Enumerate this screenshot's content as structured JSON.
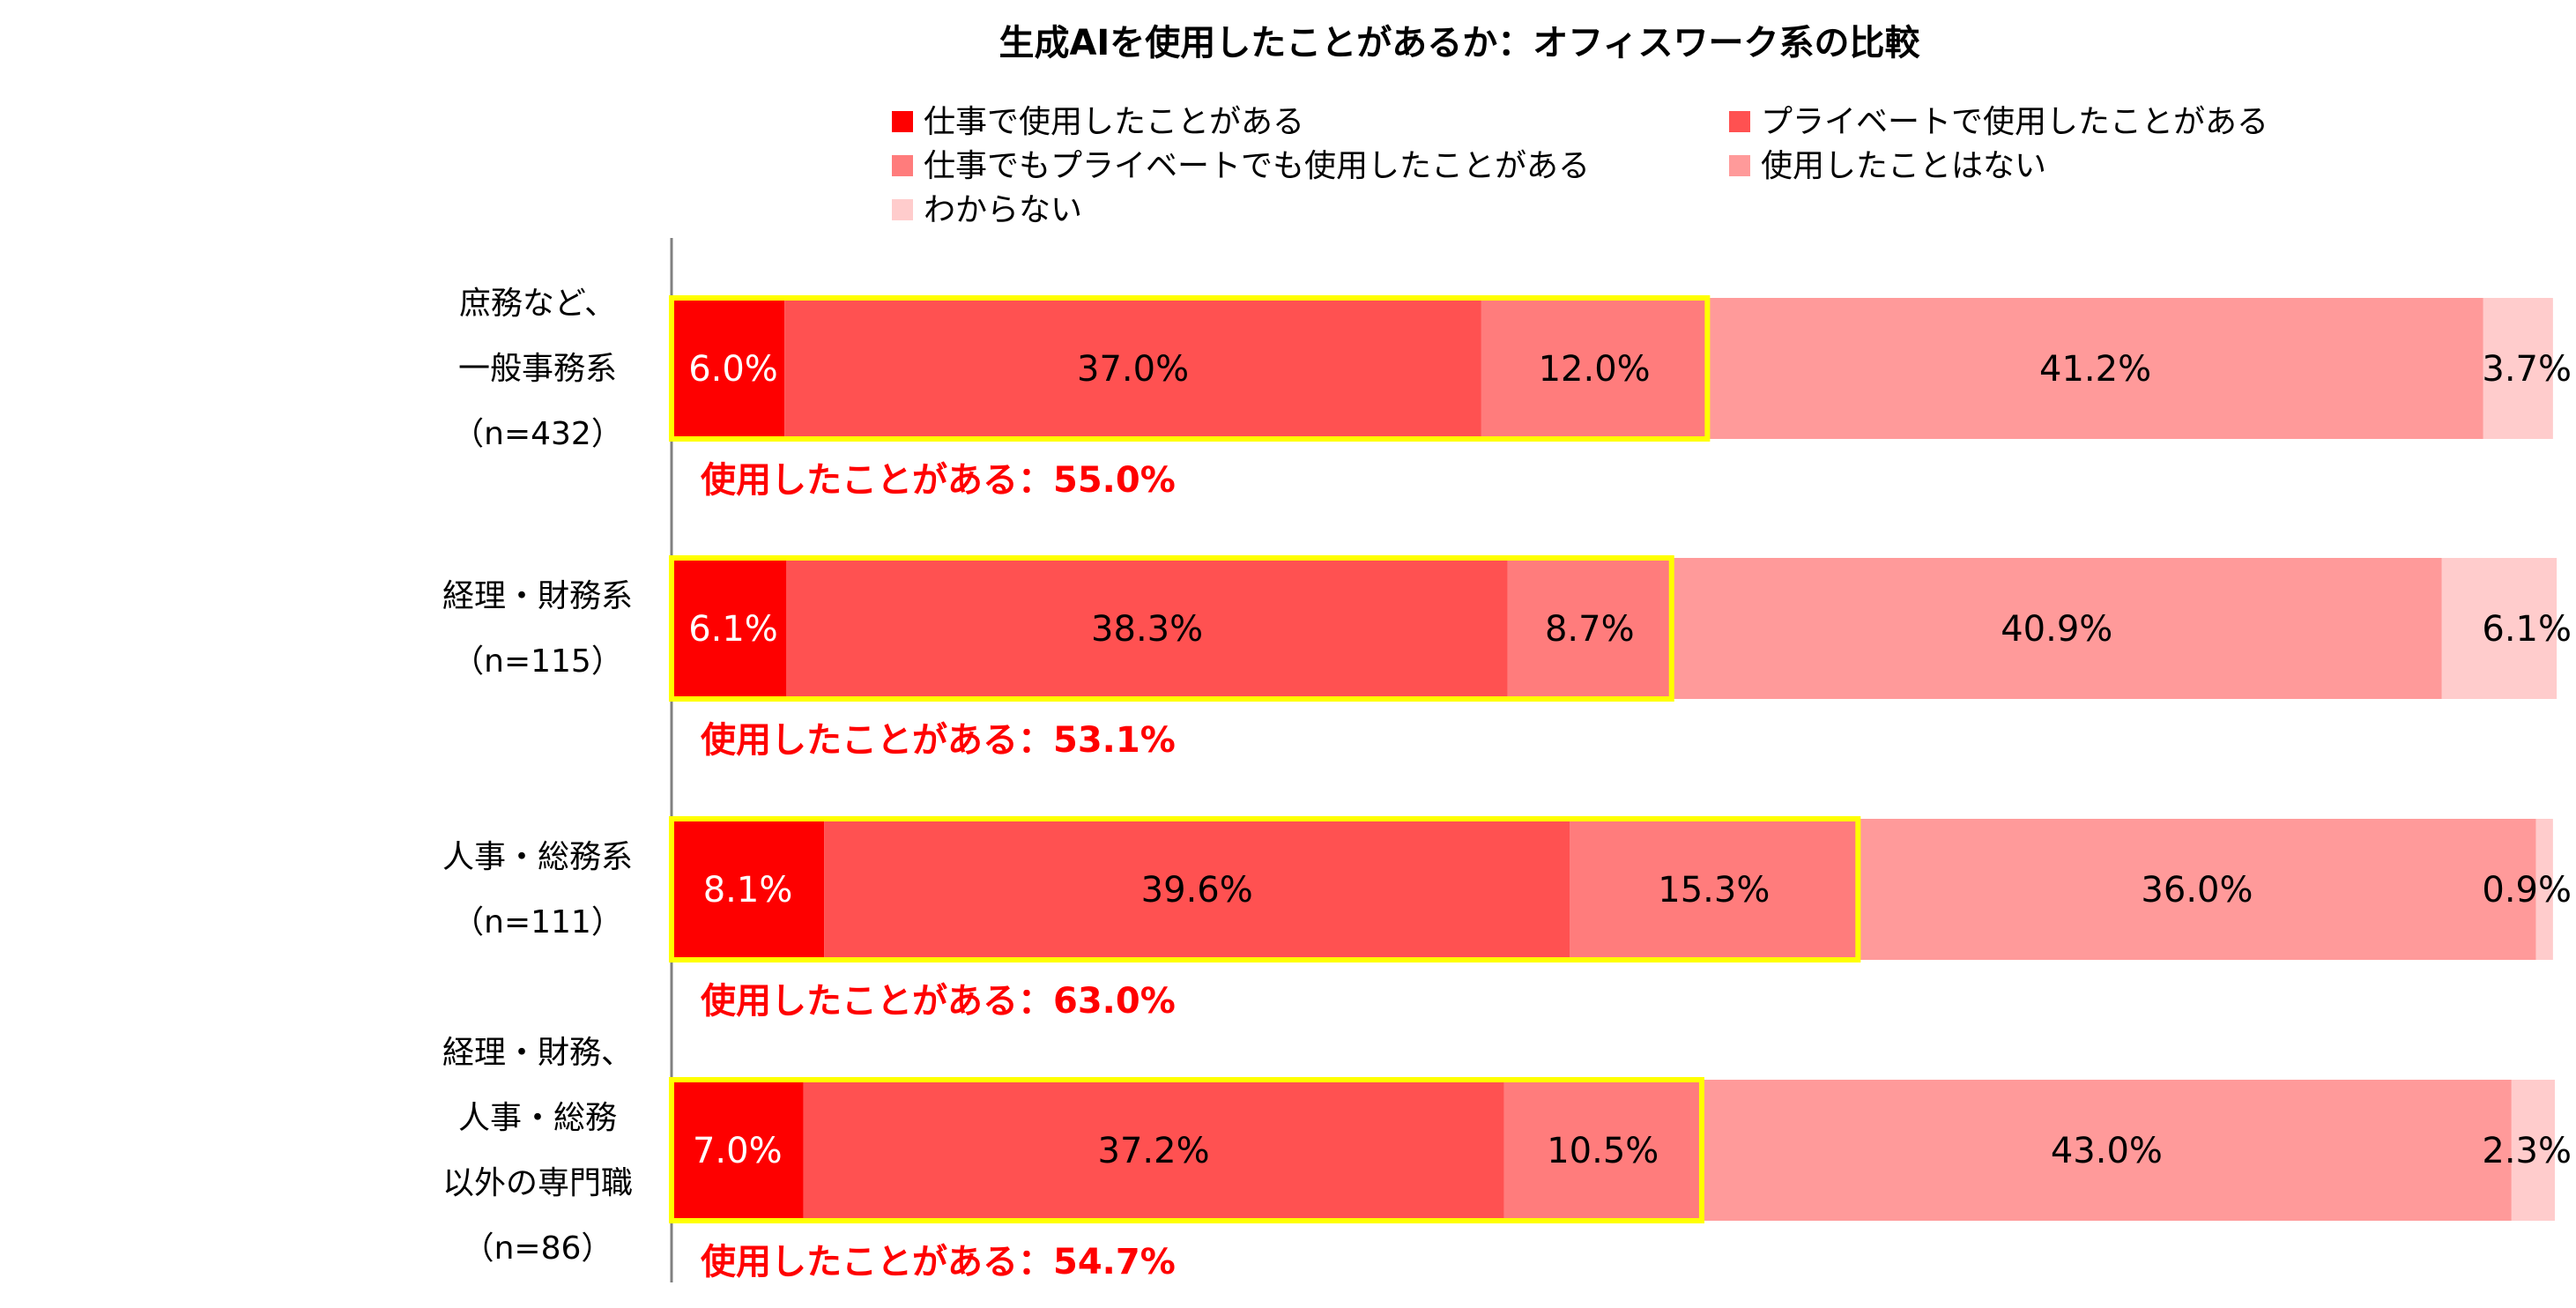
{
  "colors": {
    "work_only": "#fe0000",
    "private_only": "#ff5151",
    "both": "#ff7c7c",
    "never": "#ff9a9a",
    "unknown": "#ffcccc",
    "highlight_border": "#ffff00",
    "summary_text": "#ff0000",
    "axis": "#808080"
  },
  "chart_data": {
    "type": "bar",
    "orientation": "horizontal",
    "stacked": true,
    "percent": true,
    "title": "生成AIを使用したことがあるか：オフィスワーク系の比較",
    "legend_position": "top",
    "xlim": [
      0,
      100
    ],
    "categories": [
      [
        "庶務など、",
        "一般事務系",
        "（n=432）"
      ],
      [
        "経理・財務系",
        "（n=115）"
      ],
      [
        "人事・総務系",
        "（n=111）"
      ],
      [
        "経理・財務、",
        "人事・総務",
        "以外の専門職",
        "（n=86）"
      ]
    ],
    "series": [
      {
        "name": "仕事で使用したことがある",
        "values": [
          6.0,
          6.1,
          8.1,
          7.0
        ],
        "labels": [
          "6.0%",
          "6.1%",
          "8.1%",
          "7.0%"
        ]
      },
      {
        "name": "プライベートで使用したことがある",
        "values": [
          37.0,
          38.3,
          39.6,
          37.2
        ],
        "labels": [
          "37.0%",
          "38.3%",
          "39.6%",
          "37.2%"
        ]
      },
      {
        "name": "仕事でもプライベートでも使用したことがある",
        "values": [
          12.0,
          8.7,
          15.3,
          10.5
        ],
        "labels": [
          "12.0%",
          "8.7%",
          "15.3%",
          "10.5%"
        ]
      },
      {
        "name": "使用したことはない",
        "values": [
          41.2,
          40.9,
          36.0,
          43.0
        ],
        "labels": [
          "41.2%",
          "40.9%",
          "36.0%",
          "43.0%"
        ]
      },
      {
        "name": "わからない",
        "values": [
          3.7,
          6.1,
          0.9,
          2.3
        ],
        "labels": [
          "3.7%",
          "6.1%",
          "0.9%",
          "2.3%"
        ]
      }
    ],
    "annotations": [
      "使用したことがある：55.0%",
      "使用したことがある：53.1%",
      "使用したことがある：63.0%",
      "使用したことがある：54.7%"
    ]
  }
}
